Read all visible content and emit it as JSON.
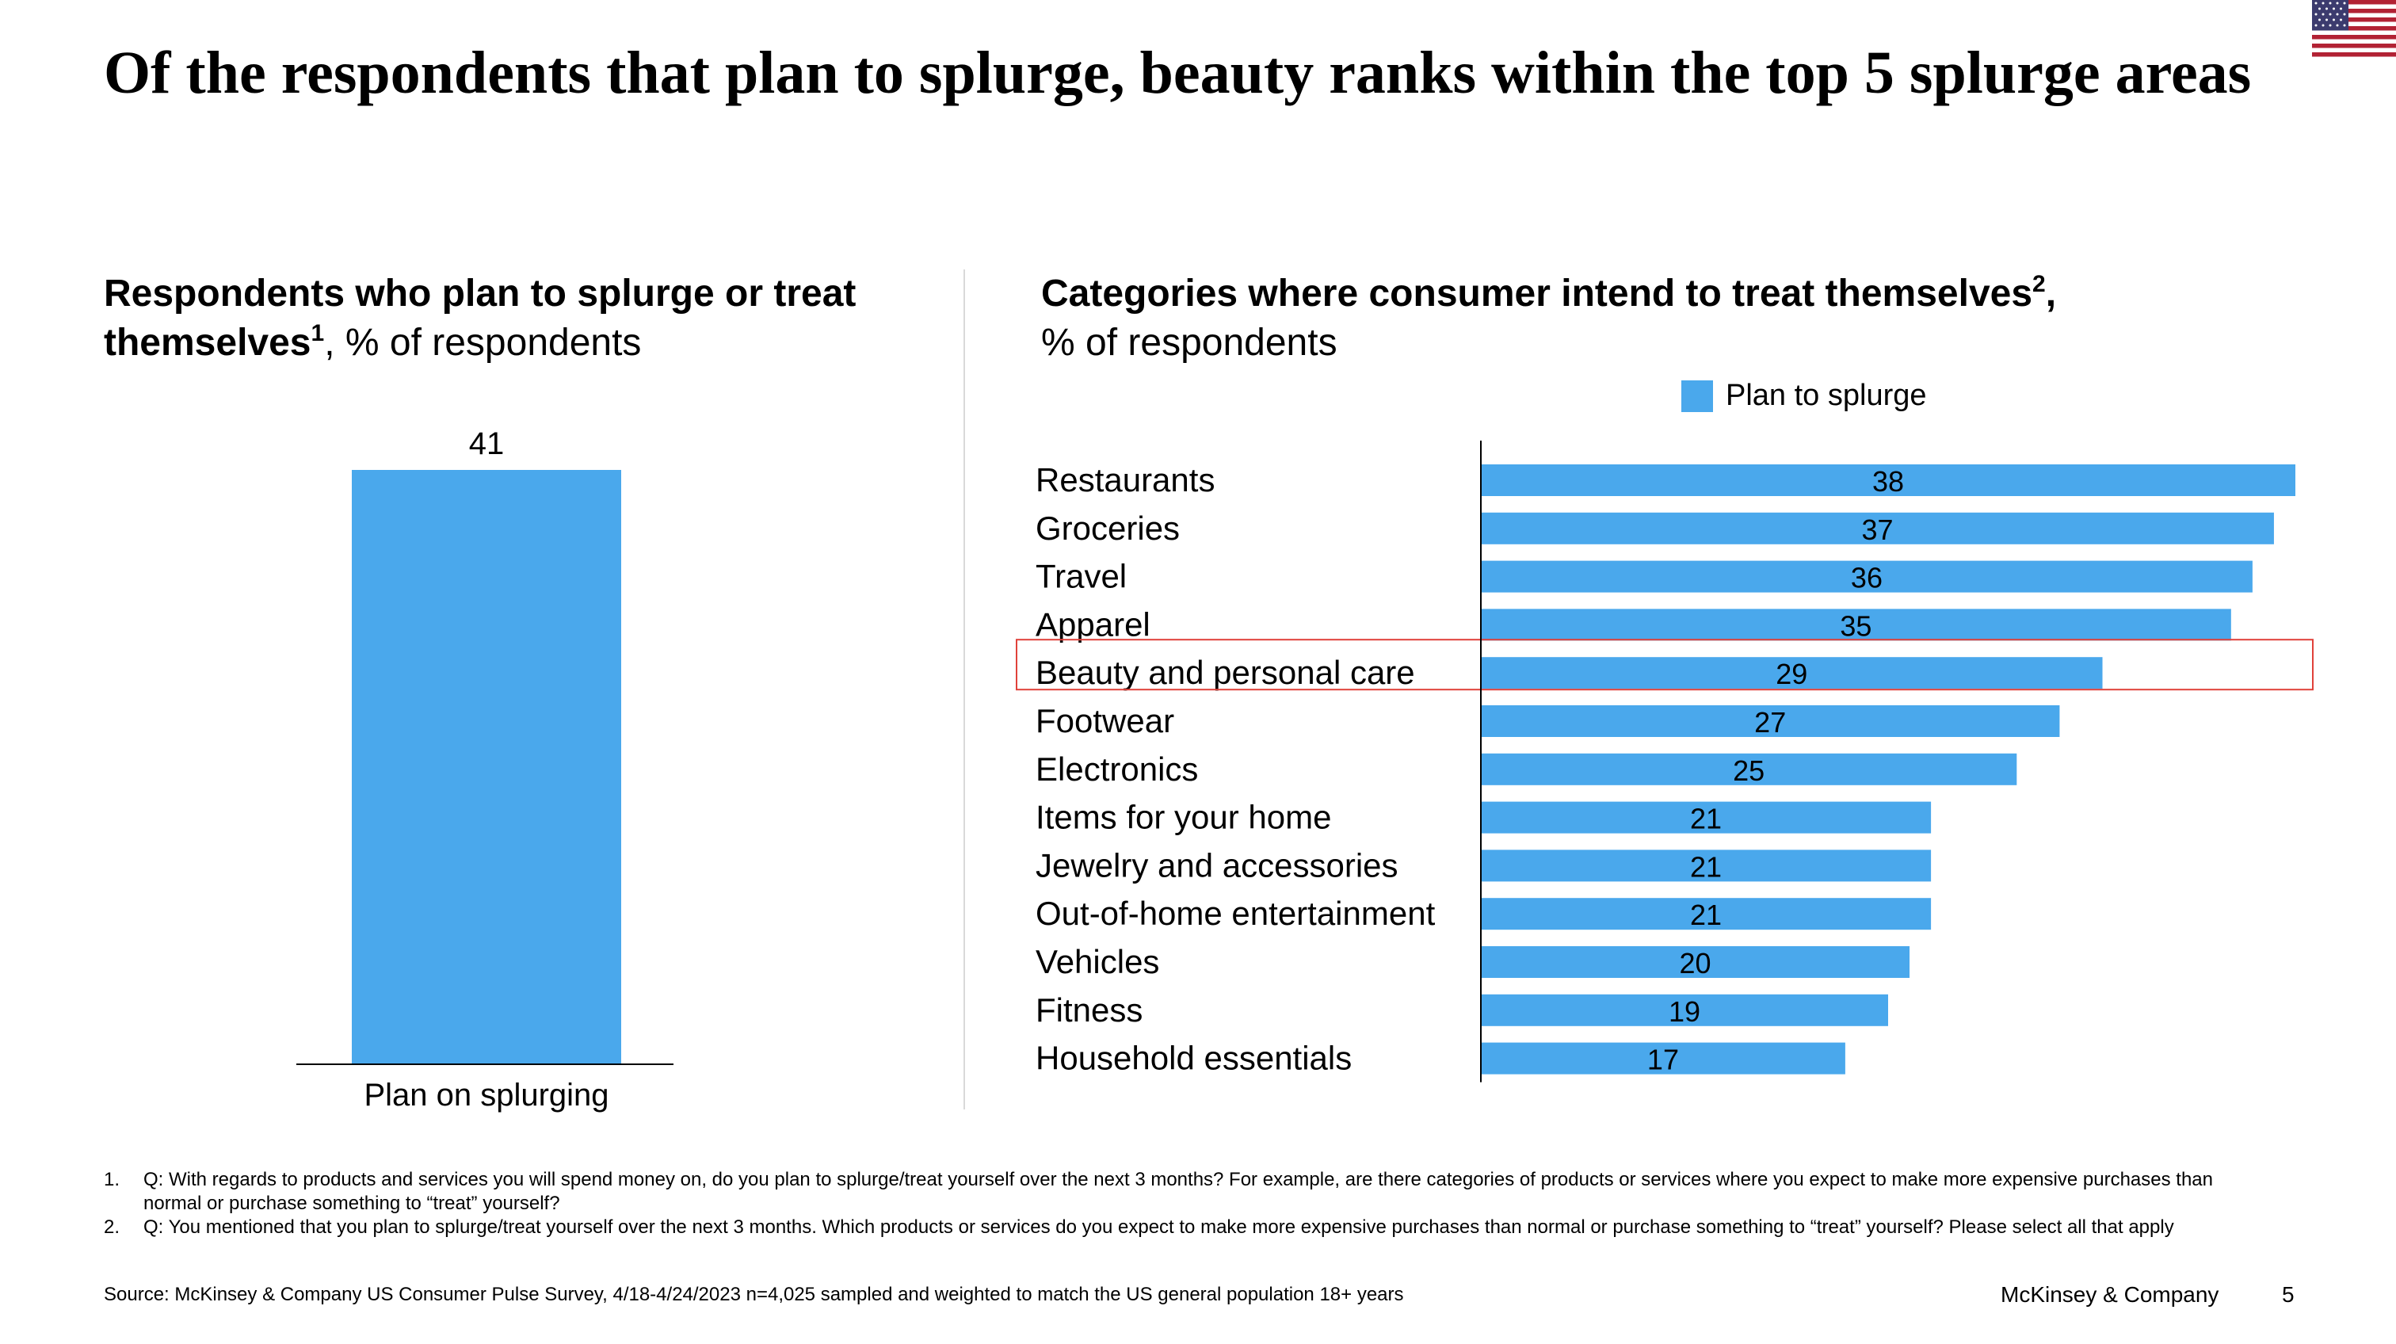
{
  "title": "Of the respondents that plan to splurge, beauty ranks within the top 5 splurge areas",
  "left_chart": {
    "heading_bold": "Respondents who plan to splurge or treat themselves",
    "heading_sup": "1",
    "heading_rest": ", % of respondents"
  },
  "right_chart": {
    "heading_bold": "Categories where consumer intend to treat themselves",
    "heading_sup": "2",
    "heading_comma": ",",
    "heading_rest": "% of respondents",
    "legend_label": "Plan to splurge"
  },
  "chart_data": [
    {
      "type": "bar",
      "orientation": "vertical",
      "title": "Respondents who plan to splurge or treat themselves, % of respondents",
      "categories": [
        "Plan on splurging"
      ],
      "values": [
        41
      ],
      "color": "#4aa8ec",
      "grid": false
    },
    {
      "type": "bar",
      "orientation": "horizontal",
      "title": "Categories where consumer intend to treat themselves, % of respondents",
      "categories": [
        "Restaurants",
        "Groceries",
        "Travel",
        "Apparel",
        "Beauty and personal care",
        "Footwear",
        "Electronics",
        "Items for your home",
        "Jewelry and accessories",
        "Out-of-home entertainment",
        "Vehicles",
        "Fitness",
        "Household essentials"
      ],
      "series": [
        {
          "name": "Plan to splurge",
          "values": [
            38,
            37,
            36,
            35,
            29,
            27,
            25,
            21,
            21,
            21,
            20,
            19,
            17
          ]
        }
      ],
      "highlight": "Beauty and personal care",
      "highlight_color": "#e0413a",
      "color": "#4aa8ec",
      "legend_position": "top",
      "grid": false
    }
  ],
  "footnotes": [
    {
      "num": "1.",
      "text": "Q: With regards to products and services you will spend money on, do you plan to splurge/treat yourself over the next 3 months?  For example, are there categories of products or services where you expect to make more expensive purchases than normal or purchase something to “treat” yourself?"
    },
    {
      "num": "2.",
      "text": "Q: You mentioned that you plan to splurge/treat yourself over the next 3 months. Which products or services do you expect to make more expensive purchases than normal or purchase something to “treat” yourself? Please select all that apply"
    }
  ],
  "source": "Source: McKinsey & Company US Consumer Pulse Survey, 4/18-4/24/2023 n=4,025 sampled and weighted to match the US general population 18+ years",
  "brand": "McKinsey & Company",
  "page_number": "5",
  "flag_icon": "us-flag-icon"
}
